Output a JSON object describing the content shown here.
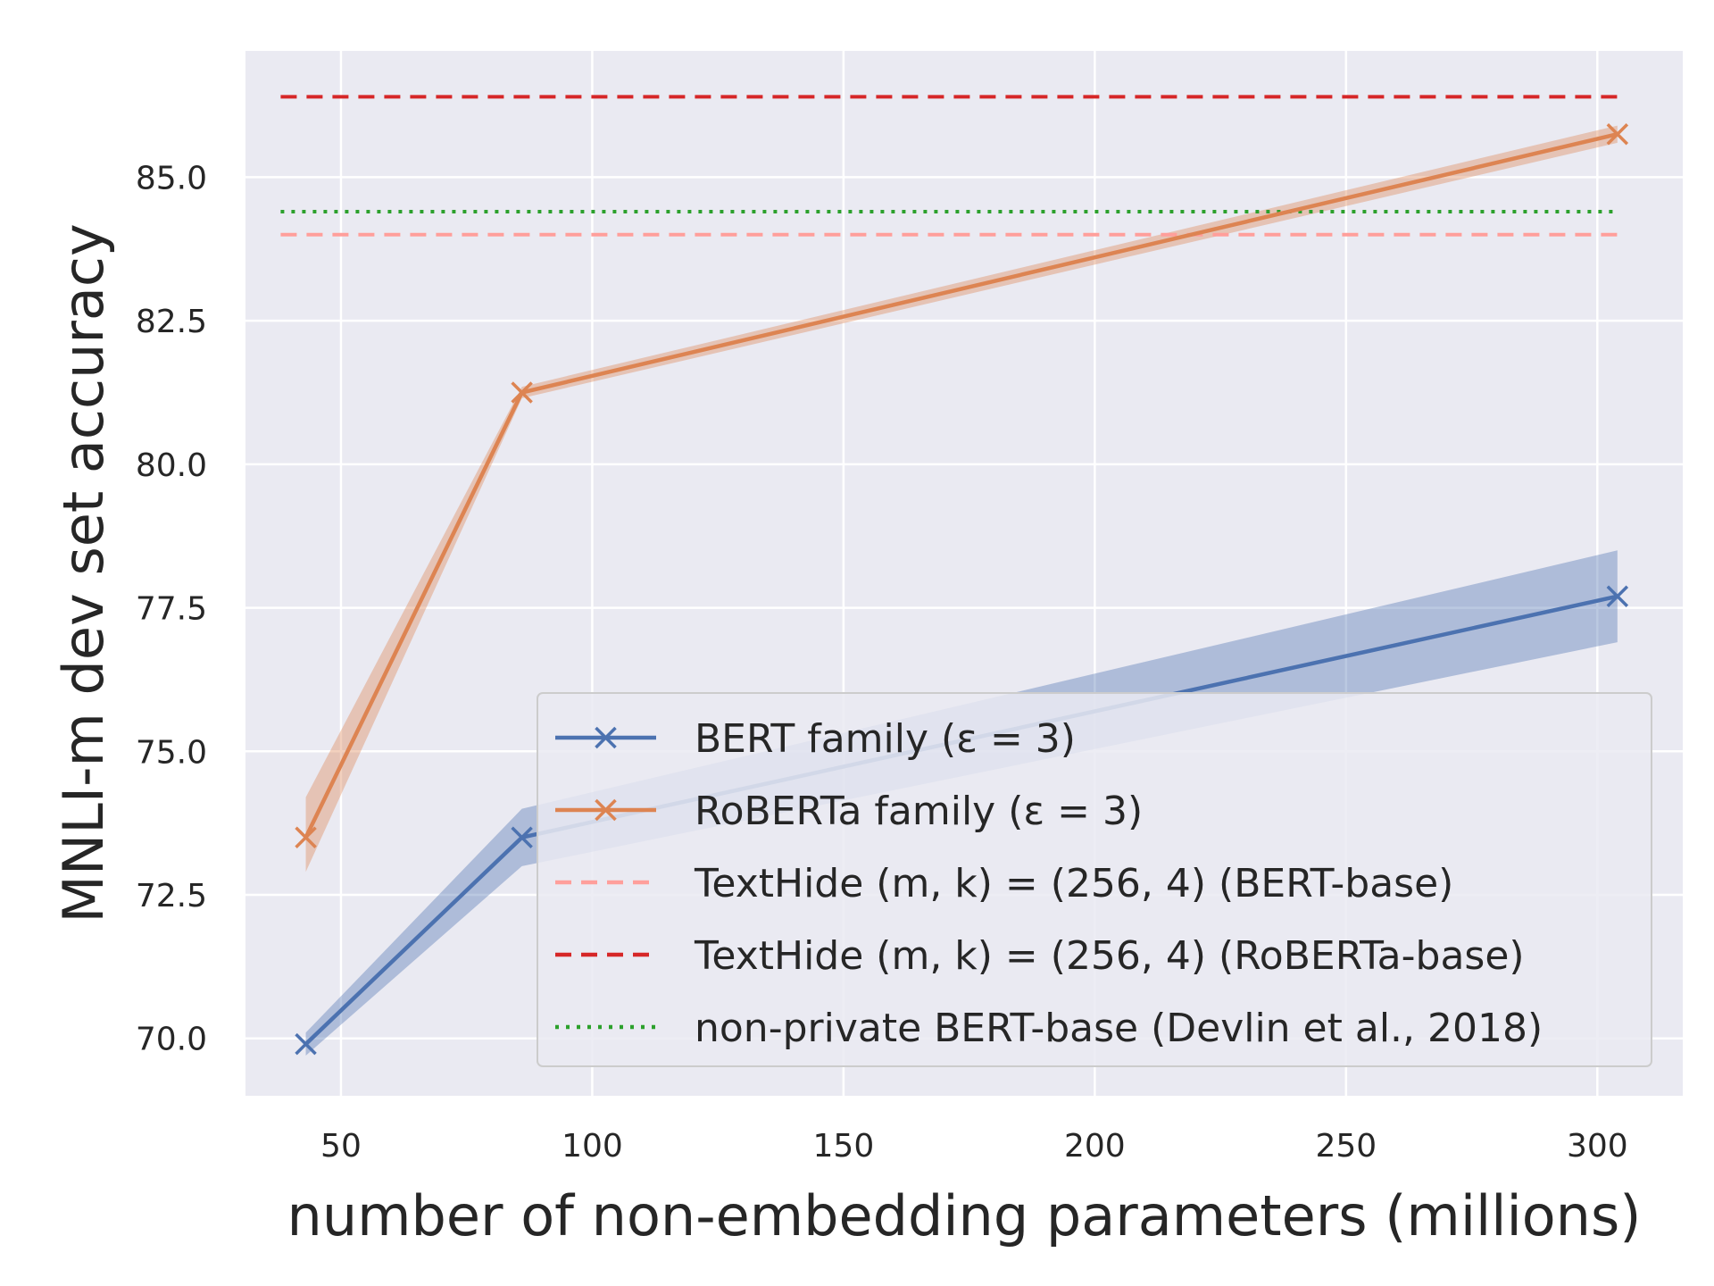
{
  "chart_data": {
    "type": "line",
    "xlabel": "number of non-embedding parameters (millions)",
    "ylabel": "MNLI-m dev set accuracy",
    "xlim": [
      31,
      317
    ],
    "ylim": [
      69.0,
      87.2
    ],
    "xticks": [
      50,
      100,
      150,
      200,
      250,
      300
    ],
    "xtick_labels": [
      "50",
      "100",
      "150",
      "200",
      "250",
      "300"
    ],
    "yticks": [
      70.0,
      72.5,
      75.0,
      77.5,
      80.0,
      82.5,
      85.0
    ],
    "ytick_labels": [
      "70.0",
      "72.5",
      "75.0",
      "77.5",
      "80.0",
      "82.5",
      "85.0"
    ],
    "grid": true,
    "legend_position": "lower-right",
    "series": [
      {
        "name": "BERT family (ε = 3)",
        "color": "#4c72b0",
        "marker": "x",
        "style": "solid",
        "x": [
          43,
          86,
          304
        ],
        "y": [
          69.9,
          73.5,
          77.7
        ],
        "y_lower": [
          69.7,
          73.0,
          76.9
        ],
        "y_upper": [
          70.1,
          74.0,
          78.5
        ]
      },
      {
        "name": "RoBERTa family (ε = 3)",
        "color": "#dd8452",
        "marker": "x",
        "style": "solid",
        "x": [
          43,
          86,
          304
        ],
        "y": [
          73.5,
          81.25,
          85.75
        ],
        "y_lower": [
          72.9,
          81.15,
          85.6
        ],
        "y_upper": [
          74.2,
          81.35,
          85.9
        ]
      }
    ],
    "reference_lines": [
      {
        "name": "TextHide (m, k) = (256, 4) (BERT-base)",
        "color": "#ff9f9b",
        "style": "dashed",
        "y": 84.0,
        "x": [
          38,
          304
        ]
      },
      {
        "name": "TextHide (m, k) = (256, 4) (RoBERTa-base)",
        "color": "#d62728",
        "style": "dashed",
        "y": 86.4,
        "x": [
          38,
          304
        ]
      },
      {
        "name": "non-private BERT-base (Devlin et al., 2018)",
        "color": "#2ca02c",
        "style": "dotted",
        "y": 84.4,
        "x": [
          38,
          304
        ]
      }
    ]
  }
}
